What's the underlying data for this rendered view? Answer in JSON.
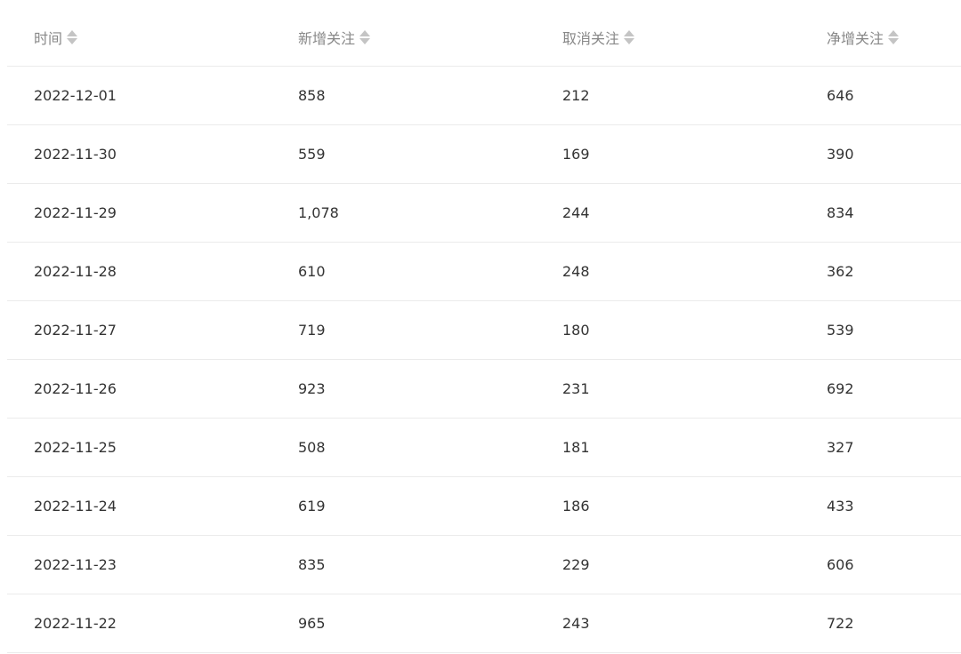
{
  "table": {
    "columns": [
      "时间",
      "新增关注",
      "取消关注",
      "净增关注"
    ],
    "rows": [
      [
        "2022-12-01",
        "858",
        "212",
        "646"
      ],
      [
        "2022-11-30",
        "559",
        "169",
        "390"
      ],
      [
        "2022-11-29",
        "1,078",
        "244",
        "834"
      ],
      [
        "2022-11-28",
        "610",
        "248",
        "362"
      ],
      [
        "2022-11-27",
        "719",
        "180",
        "539"
      ],
      [
        "2022-11-26",
        "923",
        "231",
        "692"
      ],
      [
        "2022-11-25",
        "508",
        "181",
        "327"
      ],
      [
        "2022-11-24",
        "619",
        "186",
        "433"
      ],
      [
        "2022-11-23",
        "835",
        "229",
        "606"
      ],
      [
        "2022-11-22",
        "965",
        "243",
        "722"
      ]
    ]
  }
}
